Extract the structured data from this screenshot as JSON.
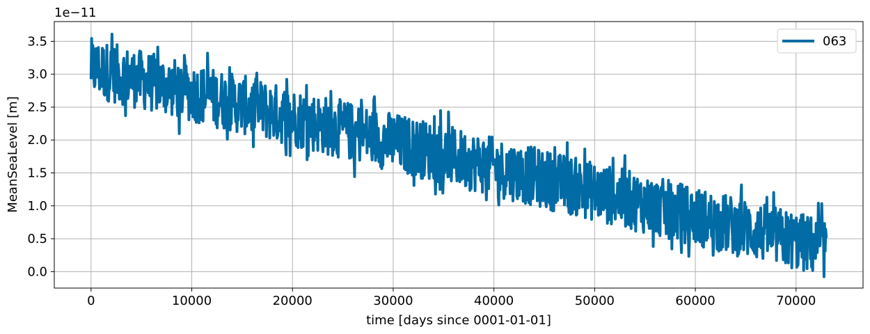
{
  "chart_data": {
    "type": "line",
    "xlabel": "time [days since 0001-01-01]",
    "ylabel": "MeanSeaLevel [m]",
    "offset_text": "1e−11",
    "xlim": [
      -3650,
      76650
    ],
    "ylim": [
      -0.25,
      3.8
    ],
    "xticks": [
      0,
      10000,
      20000,
      30000,
      40000,
      50000,
      60000,
      70000
    ],
    "yticks": [
      0.0,
      0.5,
      1.0,
      1.5,
      2.0,
      2.5,
      3.0,
      3.5
    ],
    "grid": true,
    "legend_position": "top-right",
    "series": [
      {
        "name": "063",
        "color": "#006ba4",
        "x_range": [
          0,
          73000
        ],
        "trend_start": 3.1,
        "trend_end": 0.35,
        "band_halfwidth": 0.45
      }
    ]
  }
}
